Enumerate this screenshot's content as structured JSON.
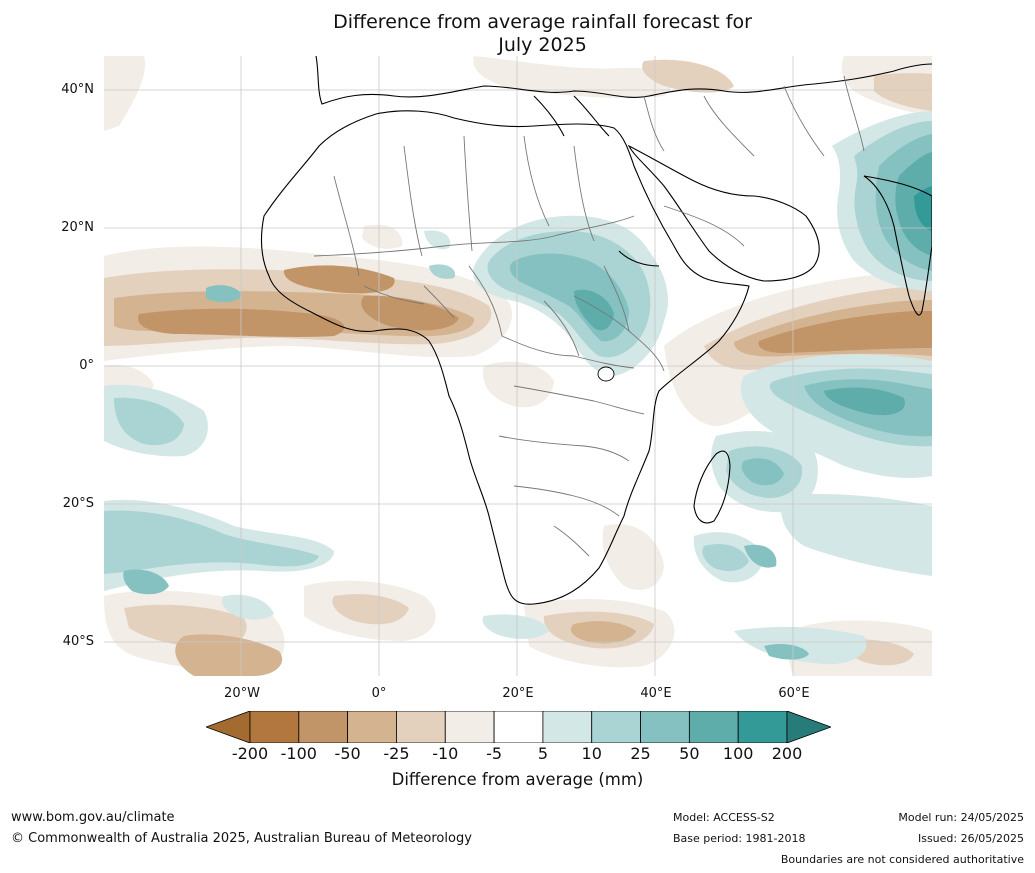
{
  "title": {
    "line1": "Difference from average rainfall forecast for",
    "line2": "July 2025"
  },
  "map": {
    "lat_labels": [
      "40°N",
      "20°N",
      "0°",
      "20°S",
      "40°S"
    ],
    "lon_labels": [
      "20°W",
      "0°",
      "20°E",
      "40°E",
      "60°E"
    ]
  },
  "legend": {
    "label": "Difference from average (mm)",
    "ticks": [
      "-200",
      "-100",
      "-50",
      "-25",
      "-10",
      "-5",
      "5",
      "10",
      "25",
      "50",
      "100",
      "200"
    ],
    "colors": [
      "#a36b30",
      "#b1773f",
      "#c19568",
      "#d4b391",
      "#e3d1be",
      "#f2ede6",
      "#ffffff",
      "#d3e7e6",
      "#aad4d3",
      "#84c1c0",
      "#5eadab",
      "#349a98",
      "#277c7a"
    ]
  },
  "footer": {
    "website": "www.bom.gov.au/climate",
    "copyright": "© Commonwealth of Australia 2025, Australian Bureau of Meteorology",
    "model": "Model: ACCESS-S2",
    "base_period": "Base period: 1981-2018",
    "model_run": "Model run: 24/05/2025",
    "issued": "Issued: 26/05/2025",
    "disclaimer": "Boundaries are not considered authoritative"
  }
}
